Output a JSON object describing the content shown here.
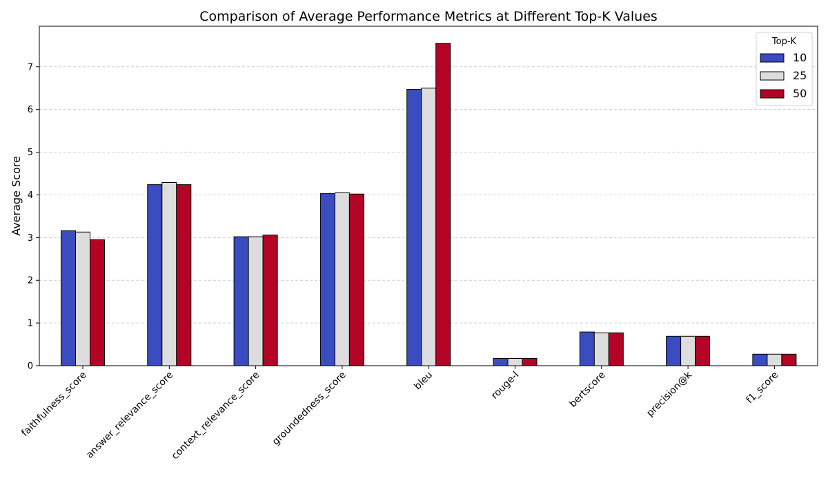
{
  "chart_data": {
    "type": "bar",
    "title": "Comparison of Average Performance Metrics at Different Top-K Values",
    "xlabel": "",
    "ylabel": "Average Score",
    "ylim": [
      0,
      7.95
    ],
    "yticks": [
      0,
      1,
      2,
      3,
      4,
      5,
      6,
      7
    ],
    "grid": "horizontal dashed",
    "legend": {
      "title": "Top-K",
      "placement": "top-right"
    },
    "categories": [
      "faithfulness_score",
      "answer_relevance_score",
      "context_relevance_score",
      "groundedness_score",
      "bleu",
      "rouge-l",
      "bertscore",
      "precision@k",
      "f1_score"
    ],
    "series": [
      {
        "name": "10",
        "color": "#3b4cc0",
        "values": [
          3.16,
          4.24,
          3.02,
          4.03,
          6.47,
          0.17,
          0.79,
          0.69,
          0.27
        ]
      },
      {
        "name": "25",
        "color": "#dddddd",
        "values": [
          3.13,
          4.29,
          3.02,
          4.05,
          6.5,
          0.17,
          0.77,
          0.69,
          0.27
        ]
      },
      {
        "name": "50",
        "color": "#b40426",
        "values": [
          2.95,
          4.24,
          3.06,
          4.02,
          7.55,
          0.17,
          0.77,
          0.69,
          0.27
        ]
      }
    ]
  }
}
